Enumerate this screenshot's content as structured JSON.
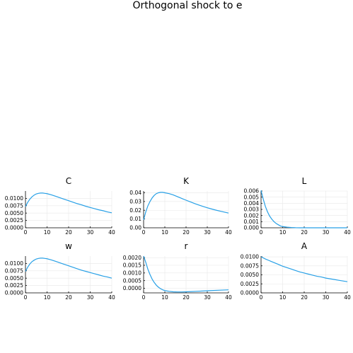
{
  "figure": {
    "title": "Orthogonal shock to e",
    "line_color": "#28a0e6"
  },
  "chart_data": [
    {
      "type": "line",
      "title": "C",
      "xlabel": "",
      "ylabel": "",
      "xlim": [
        0,
        40
      ],
      "ylim": [
        0,
        0.0125
      ],
      "xticks": [
        0,
        10,
        20,
        30,
        40
      ],
      "xtick_labels": [
        "0",
        "10",
        "20",
        "30",
        "40"
      ],
      "yticks": [
        0,
        0.0025,
        0.005,
        0.0075,
        0.01
      ],
      "ytick_labels": [
        "0.0000",
        "0.0025",
        "0.0050",
        "0.0075",
        "0.0100"
      ],
      "grid": true,
      "x": [
        0,
        1,
        2,
        3,
        4,
        5,
        6,
        7,
        8,
        9,
        10,
        12,
        14,
        16,
        18,
        20,
        22,
        24,
        26,
        28,
        30,
        32,
        34,
        36,
        38,
        40
      ],
      "y": [
        0.0072,
        0.0086,
        0.0097,
        0.0105,
        0.0111,
        0.0115,
        0.0117,
        0.0118,
        0.0118,
        0.0117,
        0.0116,
        0.0112,
        0.0107,
        0.0102,
        0.0097,
        0.0092,
        0.0087,
        0.0082,
        0.0078,
        0.0073,
        0.0069,
        0.0065,
        0.0061,
        0.0058,
        0.0054,
        0.0051
      ]
    },
    {
      "type": "line",
      "title": "K",
      "xlabel": "",
      "ylabel": "",
      "xlim": [
        0,
        40
      ],
      "ylim": [
        0,
        0.042
      ],
      "xticks": [
        0,
        10,
        20,
        30,
        40
      ],
      "xtick_labels": [
        "0",
        "10",
        "20",
        "30",
        "40"
      ],
      "yticks": [
        0,
        0.01,
        0.02,
        0.03,
        0.04
      ],
      "ytick_labels": [
        "0.00",
        "0.01",
        "0.02",
        "0.03",
        "0.04"
      ],
      "grid": true,
      "x": [
        0,
        1,
        2,
        3,
        4,
        5,
        6,
        7,
        8,
        9,
        10,
        12,
        14,
        16,
        18,
        20,
        22,
        24,
        26,
        28,
        30,
        32,
        34,
        36,
        38,
        40
      ],
      "y": [
        0.009,
        0.018,
        0.025,
        0.03,
        0.034,
        0.037,
        0.039,
        0.04,
        0.0405,
        0.0405,
        0.04,
        0.039,
        0.0375,
        0.0355,
        0.0335,
        0.0315,
        0.0296,
        0.0277,
        0.026,
        0.0244,
        0.0229,
        0.0215,
        0.0202,
        0.019,
        0.0179,
        0.0168
      ]
    },
    {
      "type": "line",
      "title": "L",
      "xlabel": "",
      "ylabel": "",
      "xlim": [
        0,
        40
      ],
      "ylim": [
        0,
        0.006
      ],
      "xticks": [
        0,
        10,
        20,
        30,
        40
      ],
      "xtick_labels": [
        "0",
        "10",
        "20",
        "30",
        "40"
      ],
      "yticks": [
        0,
        0.001,
        0.002,
        0.003,
        0.004,
        0.005,
        0.006
      ],
      "ytick_labels": [
        "0.000",
        "0.001",
        "0.002",
        "0.003",
        "0.004",
        "0.005",
        "0.006"
      ],
      "grid": true,
      "x": [
        0,
        1,
        2,
        3,
        4,
        5,
        6,
        7,
        8,
        9,
        10,
        12,
        14,
        16,
        18,
        20,
        25,
        30,
        35,
        40
      ],
      "y": [
        0.0061,
        0.0047,
        0.0035,
        0.0026,
        0.0019,
        0.0014,
        0.001,
        0.0007,
        0.0005,
        0.0003,
        0.0002,
        0.0001,
        4e-05,
        1e-05,
        0.0,
        0.0,
        0.0,
        0.0,
        0.0,
        0.0
      ]
    },
    {
      "type": "line",
      "title": "w",
      "xlabel": "",
      "ylabel": "",
      "xlim": [
        0,
        40
      ],
      "ylim": [
        0,
        0.0125
      ],
      "xticks": [
        0,
        10,
        20,
        30,
        40
      ],
      "xtick_labels": [
        "0",
        "10",
        "20",
        "30",
        "40"
      ],
      "yticks": [
        0,
        0.0025,
        0.005,
        0.0075,
        0.01
      ],
      "ytick_labels": [
        "0.0000",
        "0.0025",
        "0.0050",
        "0.0075",
        "0.0100"
      ],
      "grid": true,
      "x": [
        0,
        1,
        2,
        3,
        4,
        5,
        6,
        7,
        8,
        9,
        10,
        12,
        14,
        16,
        18,
        20,
        22,
        24,
        26,
        28,
        30,
        32,
        34,
        36,
        38,
        40
      ],
      "y": [
        0.0073,
        0.0087,
        0.0098,
        0.0106,
        0.0111,
        0.0115,
        0.0117,
        0.0118,
        0.0118,
        0.0117,
        0.0116,
        0.0112,
        0.0107,
        0.0102,
        0.0097,
        0.0092,
        0.0087,
        0.0082,
        0.0077,
        0.0073,
        0.0069,
        0.0065,
        0.0061,
        0.0057,
        0.0054,
        0.005
      ]
    },
    {
      "type": "line",
      "title": "r",
      "xlabel": "",
      "ylabel": "",
      "xlim": [
        0,
        40
      ],
      "ylim": [
        -0.0003,
        0.0021
      ],
      "xticks": [
        0,
        10,
        20,
        30,
        40
      ],
      "xtick_labels": [
        "0",
        "10",
        "20",
        "30",
        "40"
      ],
      "yticks": [
        0,
        0.0005,
        0.001,
        0.0015,
        0.002
      ],
      "ytick_labels": [
        "0.0000",
        "0.0005",
        "0.0010",
        "0.0015",
        "0.0020"
      ],
      "grid": true,
      "x": [
        0,
        1,
        2,
        3,
        4,
        5,
        6,
        7,
        8,
        9,
        10,
        12,
        14,
        16,
        18,
        20,
        25,
        30,
        35,
        40
      ],
      "y": [
        0.0021,
        0.0017,
        0.00125,
        0.0009,
        0.0006,
        0.00038,
        0.0002,
        7e-05,
        -3e-05,
        -0.0001,
        -0.00015,
        -0.0002,
        -0.00023,
        -0.00024,
        -0.00024,
        -0.00023,
        -0.0002,
        -0.00016,
        -0.00013,
        -0.0001
      ]
    },
    {
      "type": "line",
      "title": "A",
      "xlabel": "",
      "ylabel": "",
      "xlim": [
        0,
        40
      ],
      "ylim": [
        0,
        0.0102
      ],
      "xticks": [
        0,
        10,
        20,
        30,
        40
      ],
      "xtick_labels": [
        "0",
        "10",
        "20",
        "30",
        "40"
      ],
      "yticks": [
        0,
        0.0025,
        0.005,
        0.0075,
        0.01
      ],
      "ytick_labels": [
        "0.0000",
        "0.0025",
        "0.0050",
        "0.0075",
        "0.0100"
      ],
      "grid": true,
      "x": [
        0,
        2,
        4,
        6,
        8,
        10,
        12,
        14,
        16,
        18,
        20,
        22,
        24,
        26,
        28,
        30,
        32,
        34,
        36,
        38,
        40
      ],
      "y": [
        0.01,
        0.0094,
        0.0089,
        0.0084,
        0.0079,
        0.0074,
        0.007,
        0.0066,
        0.0062,
        0.0058,
        0.0055,
        0.0052,
        0.0049,
        0.0046,
        0.0044,
        0.0041,
        0.0039,
        0.0037,
        0.0035,
        0.0033,
        0.0031
      ]
    }
  ]
}
